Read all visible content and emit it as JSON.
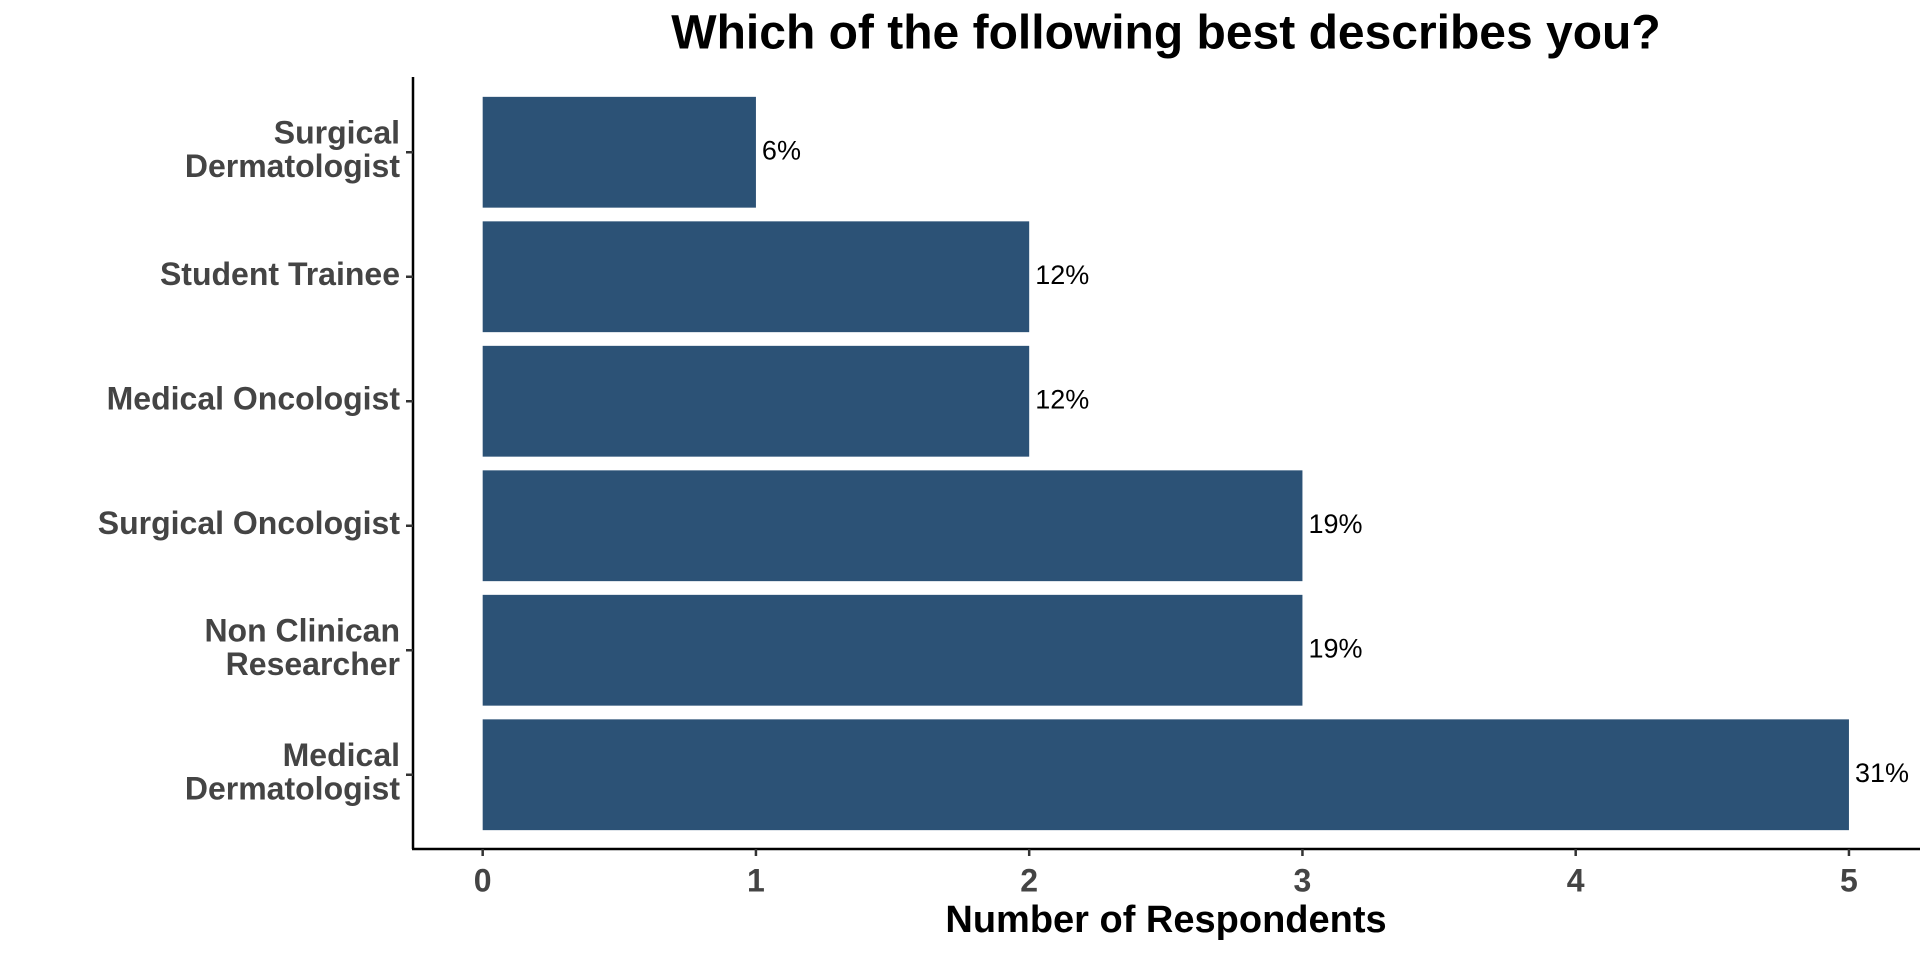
{
  "chart_data": {
    "type": "hbar",
    "title": "Which of the following best describes you?",
    "x_label": "Number of Respondents",
    "categories": [
      "Surgical\nDermatologist",
      "Student Trainee",
      "Medical Oncologist",
      "Surgical Oncologist",
      "Non Clinican\nResearcher",
      "Medical\nDermatologist"
    ],
    "values": [
      1,
      2,
      2,
      3,
      3,
      5
    ],
    "percent_labels": [
      "6%",
      "12%",
      "12%",
      "19%",
      "19%",
      "31%"
    ],
    "color": "#2c5276",
    "xlim": [
      -0.255,
      5.26
    ],
    "xticks": [
      0,
      1,
      2,
      3,
      4,
      5
    ],
    "grid": false
  }
}
